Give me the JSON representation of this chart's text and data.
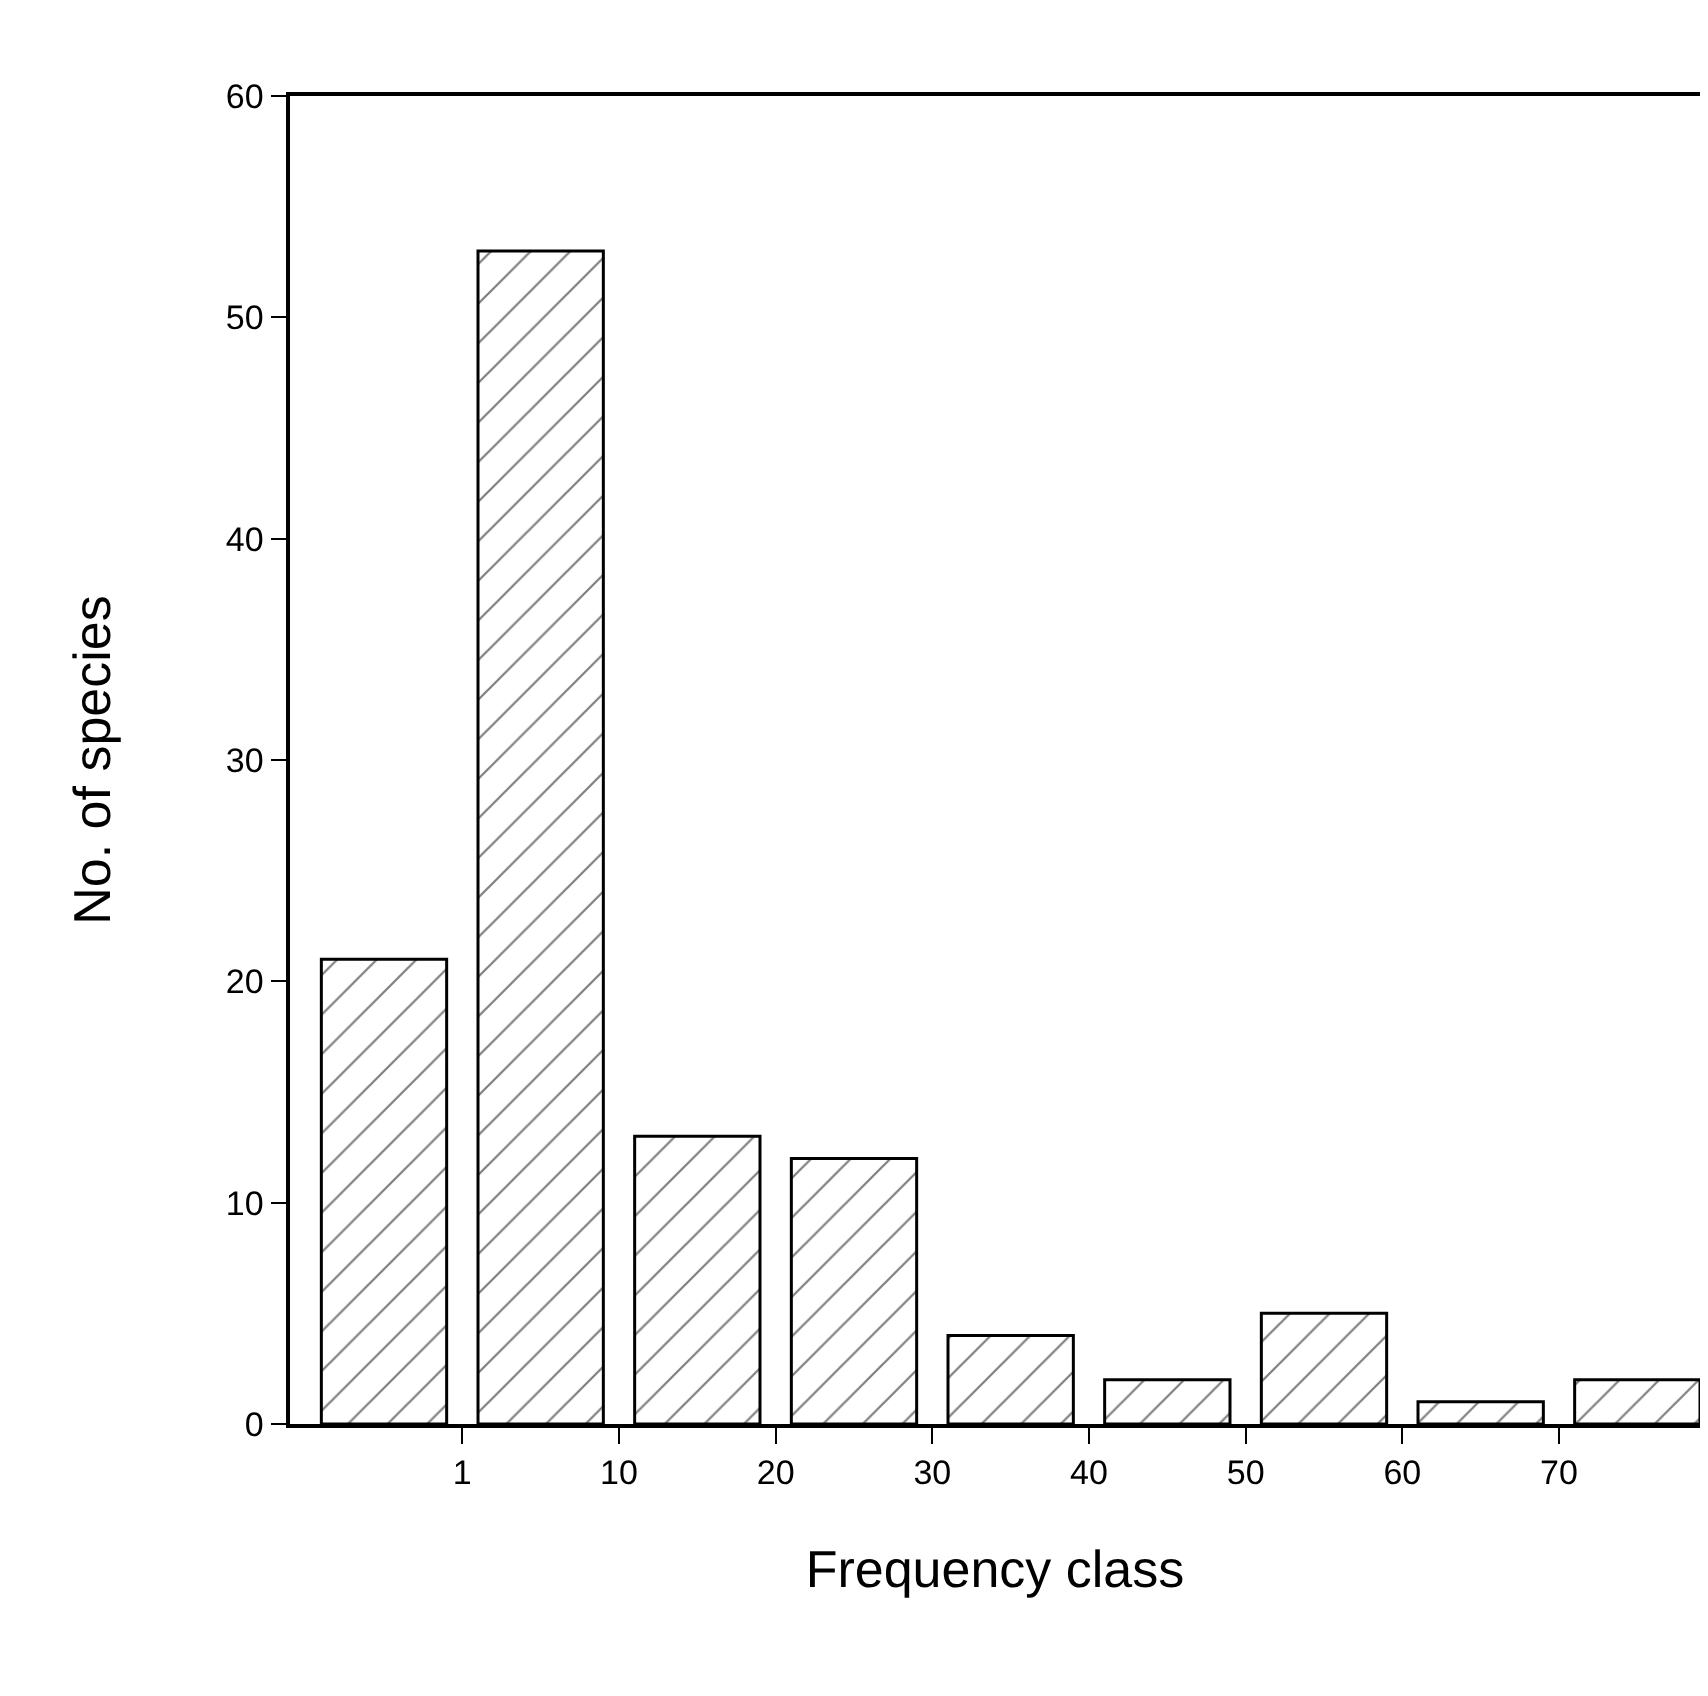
{
  "chart_data": {
    "type": "bar",
    "xlabel": "Frequency class",
    "ylabel": "No. of species",
    "categories": [
      null,
      "1",
      "10",
      "20",
      "30",
      "40",
      "50",
      "60",
      "70"
    ],
    "values": [
      21,
      53,
      13,
      12,
      4,
      2,
      5,
      1,
      2
    ],
    "color": "#000000",
    "ylim": [
      0,
      60
    ],
    "yticks": [
      0,
      10,
      20,
      30,
      40,
      50,
      60
    ]
  }
}
